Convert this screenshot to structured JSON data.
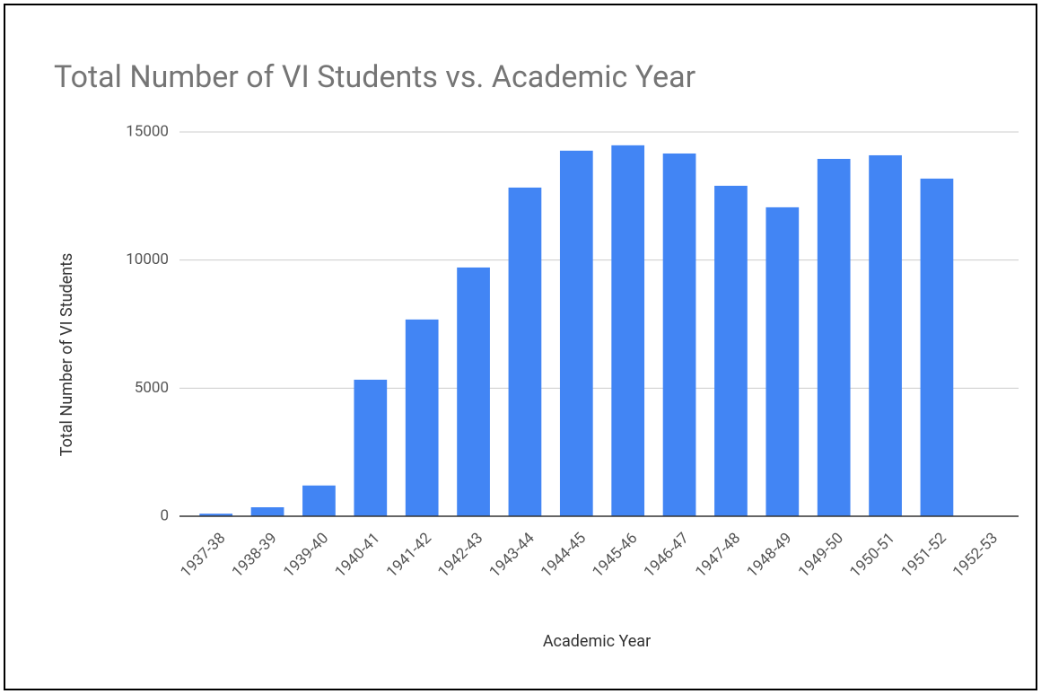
{
  "chart_data": {
    "type": "bar",
    "title": "Total Number of VI Students vs. Academic Year",
    "x_label": "Academic Year",
    "y_label": "Total Number of VI Students",
    "categories": [
      "1937-38",
      "1938-39",
      "1939-40",
      "1940-41",
      "1941-42",
      "1942-43",
      "1943-44",
      "1944-45",
      "1945-46",
      "1946-47",
      "1947-48",
      "1948-49",
      "1949-50",
      "1950-51",
      "1951-52",
      "1952-53"
    ],
    "values": [
      100,
      350,
      1200,
      5330,
      7680,
      9710,
      12830,
      14270,
      14480,
      14160,
      12900,
      12060,
      13950,
      14090,
      13180,
      null
    ],
    "color": "#4285f4",
    "ylim": [
      0,
      15000
    ],
    "yticks": [
      0,
      5000,
      10000,
      15000
    ],
    "grid": true
  }
}
